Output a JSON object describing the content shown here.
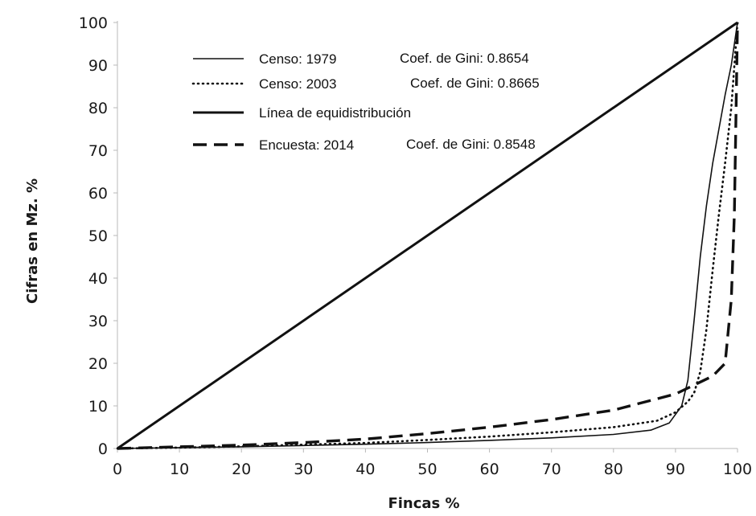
{
  "chart_data": {
    "type": "line",
    "title": "",
    "xlabel": "Fincas %",
    "ylabel": "Cifras en Mz. %",
    "xlim": [
      0,
      100
    ],
    "ylim": [
      0,
      100
    ],
    "x_ticks": [
      "0",
      "10",
      "20",
      "30",
      "40",
      "50",
      "60",
      "70",
      "80",
      "90",
      "100"
    ],
    "y_ticks": [
      "0",
      "10",
      "20",
      "30",
      "40",
      "50",
      "60",
      "70",
      "80",
      "90",
      "100"
    ],
    "grid": false,
    "legend_position": "top-left",
    "series": [
      {
        "name": "Censo: 1979",
        "gini_label": "Coef. de Gini: 0.8654",
        "style": "thin-solid",
        "color": "#111111",
        "points": [
          [
            0,
            0
          ],
          [
            10,
            0.2
          ],
          [
            20,
            0.4
          ],
          [
            30,
            0.7
          ],
          [
            40,
            1.0
          ],
          [
            50,
            1.4
          ],
          [
            60,
            1.9
          ],
          [
            70,
            2.5
          ],
          [
            80,
            3.3
          ],
          [
            86,
            4.3
          ],
          [
            89,
            6
          ],
          [
            91,
            10
          ],
          [
            92,
            16
          ],
          [
            93,
            30
          ],
          [
            94,
            45
          ],
          [
            95,
            57
          ],
          [
            96,
            67
          ],
          [
            97,
            75
          ],
          [
            98,
            83
          ],
          [
            99,
            90
          ],
          [
            100,
            100
          ]
        ]
      },
      {
        "name": "Censo: 2003",
        "gini_label": "Coef. de Gini: 0.8665",
        "style": "dotted",
        "color": "#111111",
        "points": [
          [
            0,
            0
          ],
          [
            10,
            0.2
          ],
          [
            20,
            0.5
          ],
          [
            30,
            0.9
          ],
          [
            40,
            1.3
          ],
          [
            50,
            2
          ],
          [
            60,
            2.8
          ],
          [
            70,
            3.8
          ],
          [
            80,
            5
          ],
          [
            87,
            6.5
          ],
          [
            90,
            8.5
          ],
          [
            92,
            11
          ],
          [
            93,
            13
          ],
          [
            94,
            18
          ],
          [
            95,
            28
          ],
          [
            96,
            42
          ],
          [
            97,
            55
          ],
          [
            98,
            67
          ],
          [
            99,
            80
          ],
          [
            100,
            100
          ]
        ]
      },
      {
        "name": "Línea de equidistribución",
        "gini_label": "",
        "style": "thick-solid",
        "color": "#111111",
        "points": [
          [
            0,
            0
          ],
          [
            100,
            100
          ]
        ]
      },
      {
        "name": "Encuesta: 2014",
        "gini_label": "Coef. de Gini: 0.8548",
        "style": "dashed",
        "color": "#111111",
        "points": [
          [
            0,
            0
          ],
          [
            10,
            0.4
          ],
          [
            20,
            0.8
          ],
          [
            30,
            1.4
          ],
          [
            40,
            2.2
          ],
          [
            50,
            3.5
          ],
          [
            60,
            5
          ],
          [
            70,
            6.8
          ],
          [
            80,
            9
          ],
          [
            90,
            12.8
          ],
          [
            96,
            17
          ],
          [
            98,
            20
          ],
          [
            99,
            35
          ],
          [
            99.5,
            55
          ],
          [
            100,
            100
          ]
        ]
      }
    ]
  }
}
